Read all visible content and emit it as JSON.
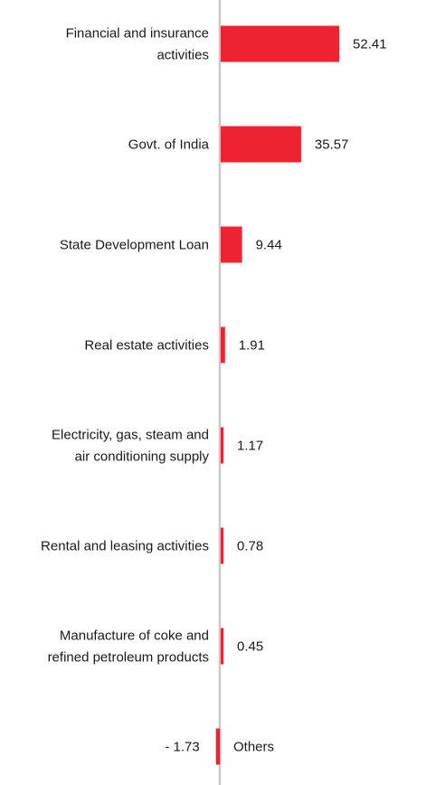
{
  "chart_data": {
    "type": "bar",
    "orientation": "horizontal",
    "categories": [
      "Financial and insurance activities",
      "Govt. of India",
      "State Development Loan",
      "Real estate activities",
      "Electricity, gas, steam and air conditioning supply",
      "Rental and leasing activities",
      "Manufacture of coke and refined petroleum products",
      "Others"
    ],
    "category_lines": [
      [
        "Financial and insurance",
        "activities"
      ],
      [
        "Govt. of India"
      ],
      [
        "State Development Loan"
      ],
      [
        "Real estate activities"
      ],
      [
        "Electricity, gas, steam and",
        "air conditioning supply"
      ],
      [
        "Rental and leasing activities"
      ],
      [
        "Manufacture of coke and",
        "refined petroleum products"
      ],
      [
        "Others"
      ]
    ],
    "values": [
      52.41,
      35.57,
      9.44,
      1.91,
      1.17,
      0.78,
      0.45,
      -1.73
    ],
    "value_labels": [
      "52.41",
      "35.57",
      "9.44",
      "1.91",
      "1.17",
      "0.78",
      "0.45",
      "- 1.73"
    ],
    "bar_color": "#ee2230",
    "axis_color": "#c8c8c8",
    "grid": false,
    "legend": "none"
  }
}
